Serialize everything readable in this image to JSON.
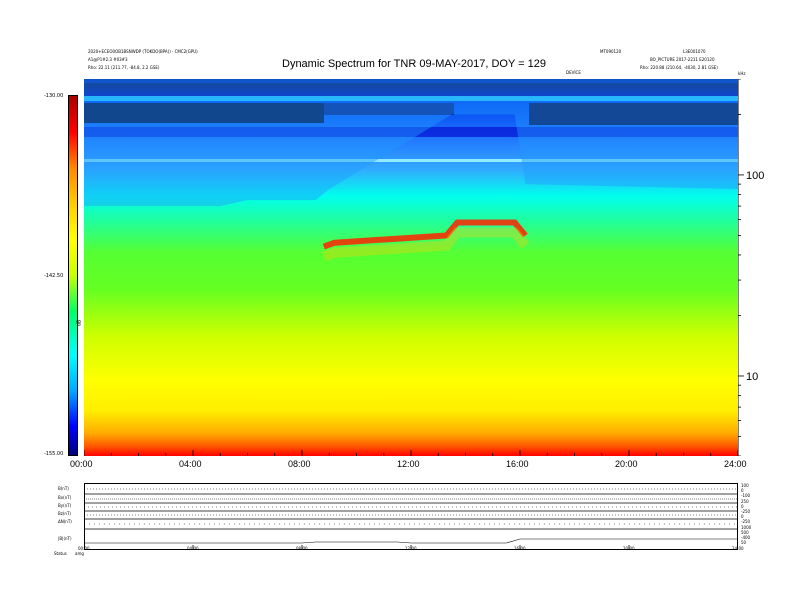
{
  "header": {
    "title": "Dynamic Spectrum for TNR 09-MAY-2017, DOY = 129",
    "top_left_line1": "2020+ECEO0OB1BSNWDP (TOKDO(BPA)) · CMC2(GPU)",
    "top_left_line2": "A1@P1#2.3 #03#3",
    "top_left_rho": "Rho:   22.11 (211.77, -84.8, 2.2 GSE)",
    "top_mid_1": "MT090120",
    "top_mid_2": "DEVICE",
    "top_right_1": "L3E001070",
    "top_right_2": "BO_PICTURE 2017-2211 E20120",
    "top_right_rho": "Rho:   220.88 (210.64, -4030, 2.81 GSE)",
    "top_right_edge": "kHz"
  },
  "colorbar": {
    "label_top": "-130.00",
    "label_mid": "-142.50",
    "label_bottom": "-155.00",
    "unit": "dB"
  },
  "lower_panel": {
    "row_labels": [
      "B(nT)",
      "Bx(nT)",
      "By(nT)",
      "Bz(nT)",
      "ΔN(nT)",
      "|B|(nT)"
    ],
    "right_values": [
      "100",
      "0",
      "-100",
      "250",
      "0",
      "-250",
      "0",
      "-250",
      "1000",
      "500",
      "-400",
      "50"
    ],
    "bottom_axis": [
      "00:00",
      "04:00",
      "08:00",
      "12:00",
      "16:00",
      "20:00",
      "24:00"
    ],
    "status_label": "Status",
    "status_value": "amg"
  },
  "chart_data": {
    "type": "heatmap",
    "title": "Dynamic Spectrum for TNR 09-MAY-2017, DOY = 129",
    "xlabel": "",
    "ylabel": "",
    "x_ticks": [
      "00:00",
      "04:00",
      "08:00",
      "12:00",
      "16:00",
      "20:00",
      "24:00"
    ],
    "x_range_hours": [
      0,
      24
    ],
    "y_scale": "log",
    "y_ticks": [
      10,
      100
    ],
    "y_range_khz": [
      4,
      300
    ],
    "colorbar_range": [
      -155.0,
      -130.0
    ],
    "colorbar_ticks": [
      -130.0,
      -142.5,
      -155.0
    ],
    "colormap": [
      "#00007a",
      "#0000ff",
      "#00aaff",
      "#00ffff",
      "#00ff66",
      "#66ff00",
      "#ccff00",
      "#ffff00",
      "#ffcc00",
      "#ff8800",
      "#ff0000",
      "#aa0000"
    ],
    "features": [
      {
        "name": "cyan/blue boundary (kHz)",
        "t_hours": [
          0,
          5,
          6,
          8.5,
          9,
          13.5,
          15.8,
          16.2,
          24
        ],
        "kHz": [
          70,
          70,
          75,
          75,
          85,
          200,
          200,
          90,
          85
        ]
      },
      {
        "name": "red band (kHz)",
        "t_hours": [
          8.8,
          9.2,
          13.3,
          13.7,
          15.8,
          16.2
        ],
        "kHz": [
          44,
          46,
          50,
          58,
          58,
          50
        ]
      }
    ]
  }
}
